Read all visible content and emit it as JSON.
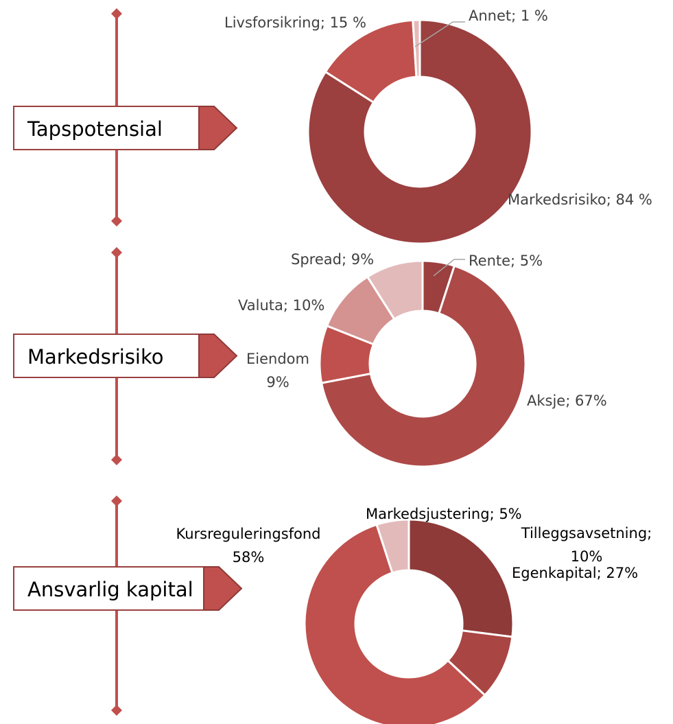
{
  "chart_data": [
    {
      "type": "donut",
      "title": "Tapspotensial",
      "labels": [
        "Markedsrisiko; 84 %",
        "Livsforsikring; 15 %",
        "Annet; 1 %"
      ],
      "values": [
        84,
        15,
        1
      ],
      "colors": [
        "#9b3f3f",
        "#c0504d",
        "#e6b9b8"
      ]
    },
    {
      "type": "donut",
      "title": "Markedsrisiko",
      "labels": [
        "Rente; 5%",
        "Aksje; 67%",
        "Eiendom\n9%",
        "Valuta; 10%",
        "Spread; 9%"
      ],
      "values": [
        5,
        67,
        9,
        10,
        9
      ],
      "colors": [
        "#9b3f3f",
        "#ad4a48",
        "#c0504d",
        "#d49291",
        "#e3baba"
      ]
    },
    {
      "type": "donut",
      "title": "Ansvarlig kapital",
      "labels": [
        "Egenkapital; 27%",
        "Tilleggsavsetning;\n10%",
        "Kursreguleringsfond\n58%",
        "Markedsjustering; 5%"
      ],
      "values": [
        27,
        10,
        58,
        5
      ],
      "colors": [
        "#8e3a38",
        "#a94543",
        "#c0504d",
        "#e3baba"
      ]
    }
  ]
}
